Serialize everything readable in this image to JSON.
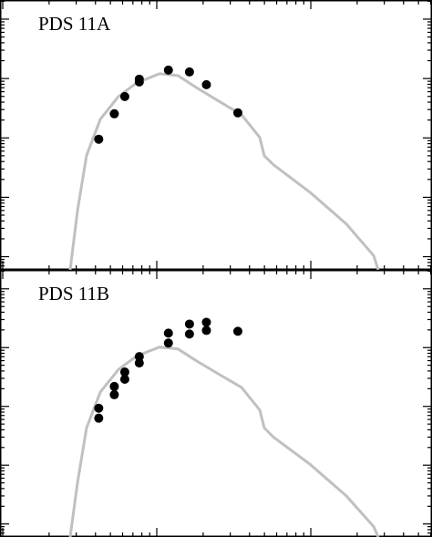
{
  "chart_data": [
    {
      "type": "line",
      "title": "PDS 11A",
      "xscale": "log",
      "yscale": "log",
      "xlim": [
        0.096,
        61.2
      ],
      "ylim": [
        0.6,
        21000
      ],
      "xticks": [
        0.1,
        1,
        10
      ],
      "xminorticks": [
        0.2,
        0.3,
        0.4,
        0.5,
        0.6,
        0.7,
        0.8,
        0.9,
        2,
        3,
        4,
        5,
        6,
        7,
        8,
        9,
        20,
        30,
        40,
        50,
        60
      ],
      "yticks": [
        1,
        10,
        100,
        1000,
        10000
      ],
      "yminorticks": [
        0.7,
        0.8,
        0.9,
        2,
        3,
        4,
        5,
        6,
        7,
        8,
        9,
        20,
        30,
        40,
        50,
        60,
        70,
        80,
        90,
        200,
        300,
        400,
        500,
        600,
        700,
        800,
        900,
        2000,
        3000,
        4000,
        5000,
        6000,
        7000,
        8000,
        9000,
        20000
      ],
      "series": [
        {
          "type": "line",
          "color": "#c0c0c0",
          "x": [
            0.274,
            0.306,
            0.35,
            0.43,
            0.564,
            0.741,
            1.04,
            1.37,
            1.8,
            2.52,
            3.55,
            4.66,
            4.99,
            5.72,
            9.86,
            17.0,
            25.6,
            27.4
          ],
          "values": [
            0.6,
            6.05,
            50.3,
            206,
            498,
            846,
            1202,
            1122,
            709,
            418,
            246,
            102,
            50,
            35.3,
            12.2,
            3.56,
            1.04,
            0.6
          ]
        },
        {
          "type": "scatter",
          "color": "#000000",
          "x": [
            0.42,
            0.53,
            0.62,
            0.77,
            0.77,
            1.19,
            1.63,
            2.1,
            3.36
          ],
          "values": [
            95,
            255,
            498,
            975,
            877,
            1386,
            1291,
            788,
            264
          ]
        }
      ]
    },
    {
      "type": "line",
      "title": "PDS 11B",
      "xscale": "log",
      "yscale": "log",
      "xlim": [
        0.096,
        61.2
      ],
      "ylim": [
        0.6,
        21000
      ],
      "xticks": [
        0.1,
        1,
        10
      ],
      "xminorticks": [
        0.2,
        0.3,
        0.4,
        0.5,
        0.6,
        0.7,
        0.8,
        0.9,
        2,
        3,
        4,
        5,
        6,
        7,
        8,
        9,
        20,
        30,
        40,
        50,
        60
      ],
      "yticks": [
        1,
        10,
        100,
        1000,
        10000
      ],
      "yminorticks": [
        0.7,
        0.8,
        0.9,
        2,
        3,
        4,
        5,
        6,
        7,
        8,
        9,
        20,
        30,
        40,
        50,
        60,
        70,
        80,
        90,
        200,
        300,
        400,
        500,
        600,
        700,
        800,
        900,
        2000,
        3000,
        4000,
        5000,
        6000,
        7000,
        8000,
        9000,
        20000
      ],
      "series": [
        {
          "type": "line",
          "color": "#c0c0c0",
          "x": [
            0.274,
            0.306,
            0.35,
            0.43,
            0.564,
            0.741,
            1.04,
            1.37,
            1.8,
            2.52,
            3.55,
            4.66,
            4.99,
            5.72,
            9.86,
            17.0,
            25.6,
            27.4
          ],
          "values": [
            0.6,
            5.1,
            43,
            175,
            423,
            719,
            1020,
            950,
            600,
            355,
            210,
            87,
            43,
            30,
            10.4,
            3.0,
            0.9,
            0.6
          ]
        },
        {
          "type": "scatter",
          "color": "#000000",
          "x": [
            0.42,
            0.42,
            0.53,
            0.53,
            0.62,
            0.62,
            0.77,
            0.77,
            1.19,
            1.19,
            1.63,
            1.63,
            2.1,
            2.1,
            3.36
          ],
          "values": [
            93,
            63,
            218,
            158,
            384,
            289,
            702,
            548,
            1763,
            1194,
            2512,
            1702,
            2698,
            1960,
            1892
          ]
        }
      ]
    }
  ]
}
